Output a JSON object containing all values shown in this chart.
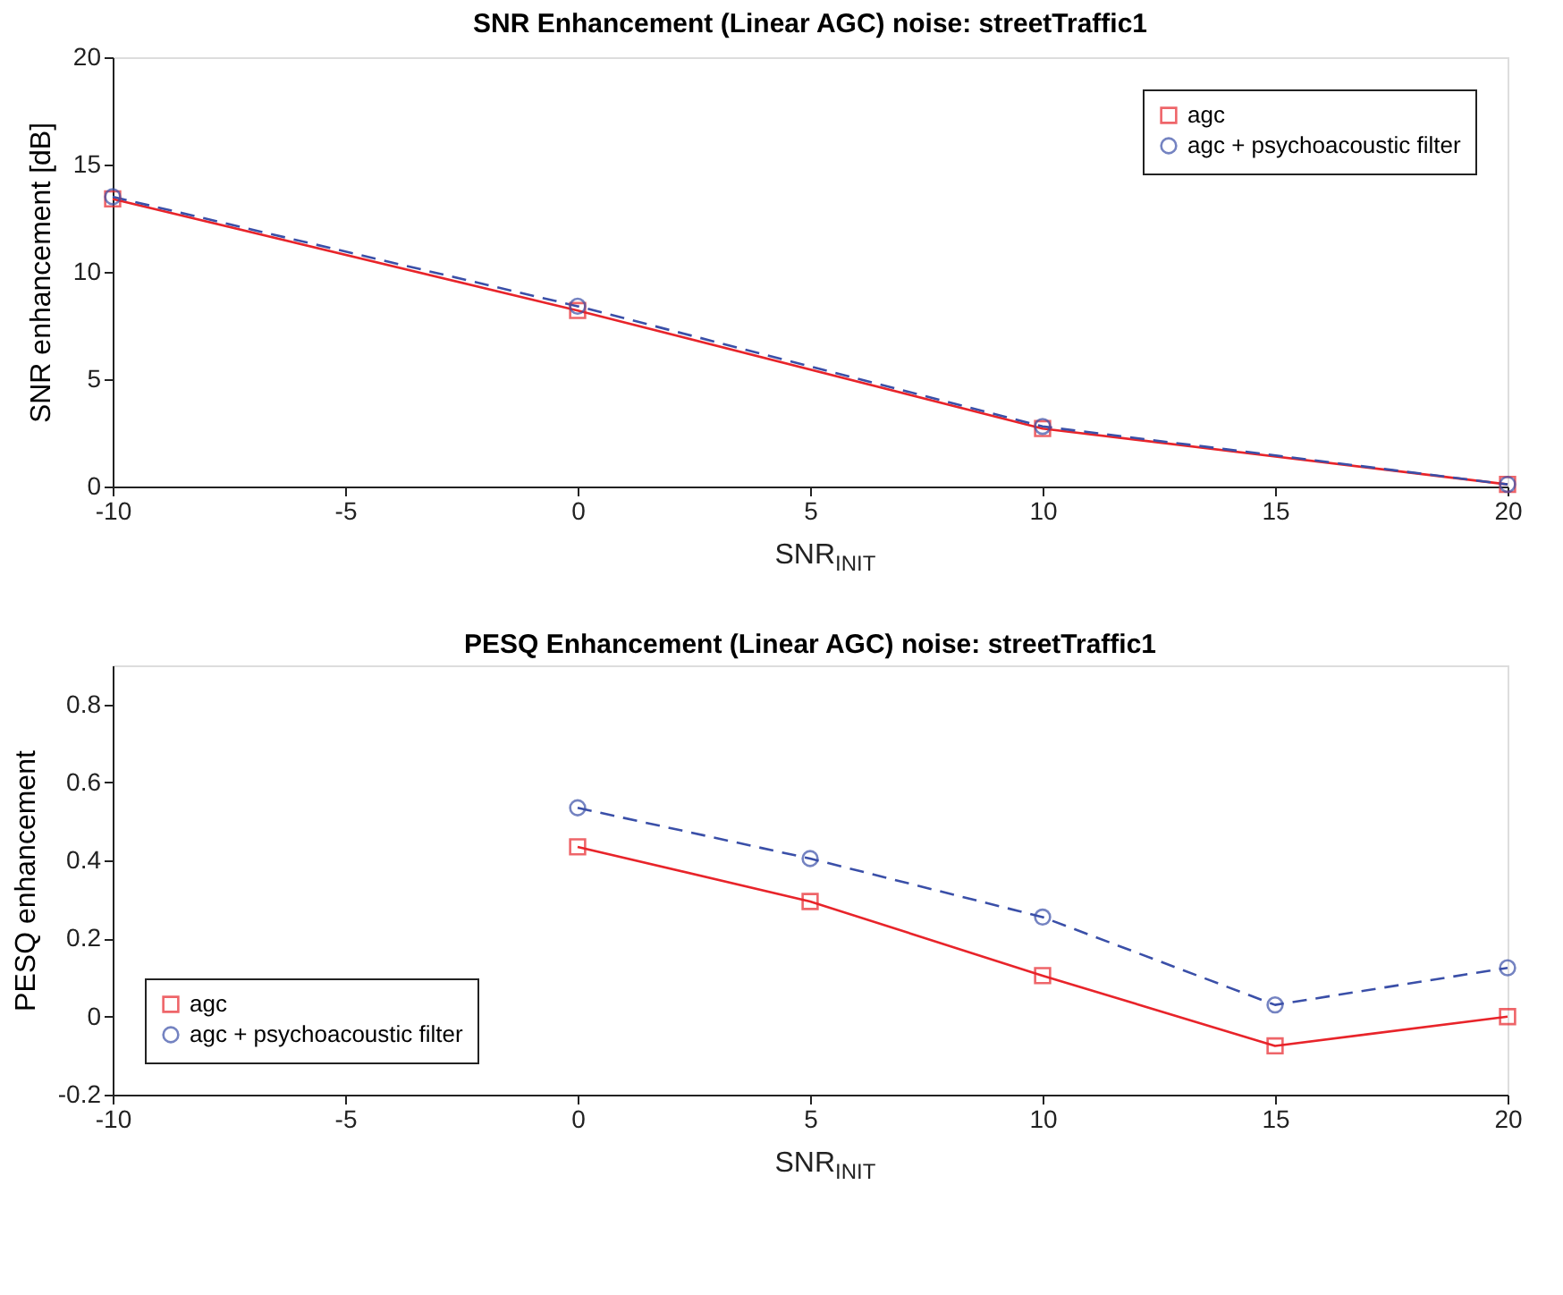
{
  "chart_data": [
    {
      "type": "line",
      "title": "SNR Enhancement (Linear AGC) noise: streetTraffic1",
      "xlabel": "SNR$_{INIT}$",
      "ylabel": "SNR enhancement [dB]",
      "xlim": [
        -10,
        20
      ],
      "xticks": [
        -10,
        -5,
        0,
        5,
        10,
        15,
        20
      ],
      "ylim": [
        0,
        20
      ],
      "yticks": [
        0,
        5,
        10,
        15,
        20
      ],
      "grid": false,
      "legend": "top right",
      "series": [
        {
          "name": "agc",
          "color": "#e8242a",
          "marker": "square",
          "line_style": "solid",
          "x": [
            -10,
            0,
            10,
            20
          ],
          "values": [
            13.4,
            8.2,
            2.7,
            0.1
          ]
        },
        {
          "name": "agc + psychoacoustic filter",
          "color": "#3a4fa8",
          "marker": "circle",
          "line_style": "dashed",
          "x": [
            -10,
            0,
            10,
            20
          ],
          "values": [
            13.5,
            8.4,
            2.8,
            0.1
          ]
        }
      ]
    },
    {
      "type": "line",
      "title": "PESQ Enhancement (Linear AGC) noise: streetTraffic1",
      "xlabel": "SNR$_{INIT}$",
      "ylabel": "PESQ enhancement",
      "xlim": [
        -10,
        20
      ],
      "xticks": [
        -10,
        -5,
        0,
        5,
        10,
        15,
        20
      ],
      "ylim": [
        -0.2,
        0.9
      ],
      "yticks": [
        -0.2,
        {
          "value": 0,
          "label": "0"
        },
        0.2,
        0.4,
        0.6,
        0.8
      ],
      "grid": false,
      "legend": "bottom left",
      "series": [
        {
          "name": "agc",
          "color": "#e8242a",
          "marker": "square",
          "line_style": "solid",
          "x": [
            0,
            5,
            10,
            15,
            20
          ],
          "values": [
            0.435,
            0.295,
            0.105,
            -0.075,
            0.0
          ]
        },
        {
          "name": "agc + psychoacoustic filter",
          "color": "#3a4fa8",
          "marker": "circle",
          "line_style": "dashed",
          "x": [
            0,
            5,
            10,
            15,
            20
          ],
          "values": [
            0.535,
            0.405,
            0.255,
            0.03,
            0.125
          ]
        }
      ]
    }
  ]
}
